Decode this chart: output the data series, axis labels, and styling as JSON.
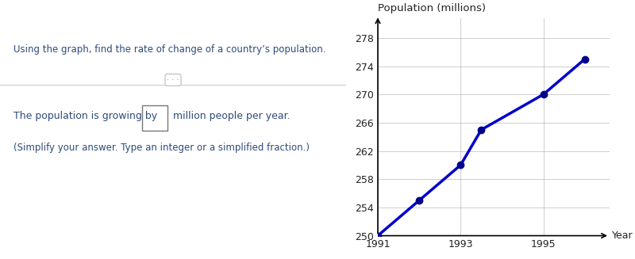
{
  "title": "Population (millions)",
  "xlabel": "Year",
  "ylabel": "",
  "xlim": [
    1991,
    1996.6
  ],
  "ylim": [
    250,
    280
  ],
  "yticks": [
    250,
    254,
    258,
    262,
    266,
    270,
    274,
    278
  ],
  "xticks": [
    1991,
    1993,
    1995
  ],
  "data_x": [
    1991,
    1992,
    1993,
    1993.5,
    1995,
    1996
  ],
  "data_y": [
    250,
    255,
    260,
    265,
    270,
    275
  ],
  "line_color": "#0000CC",
  "marker_color": "#00008B",
  "line_width": 2.5,
  "marker_size": 6,
  "background_color": "#ffffff",
  "grid_color": "#aaaaaa",
  "top_bar_color": "#4a8fa8",
  "question_text": "Using the graph, find the rate of change of a country’s population.",
  "answer_text1": "The population is growing by",
  "answer_text2": "million people per year.",
  "answer_text3": "(Simplify your answer. Type an integer or a simplified fraction.)",
  "text_color": "#2e4a7a",
  "divider_dot_text": "· · ·"
}
